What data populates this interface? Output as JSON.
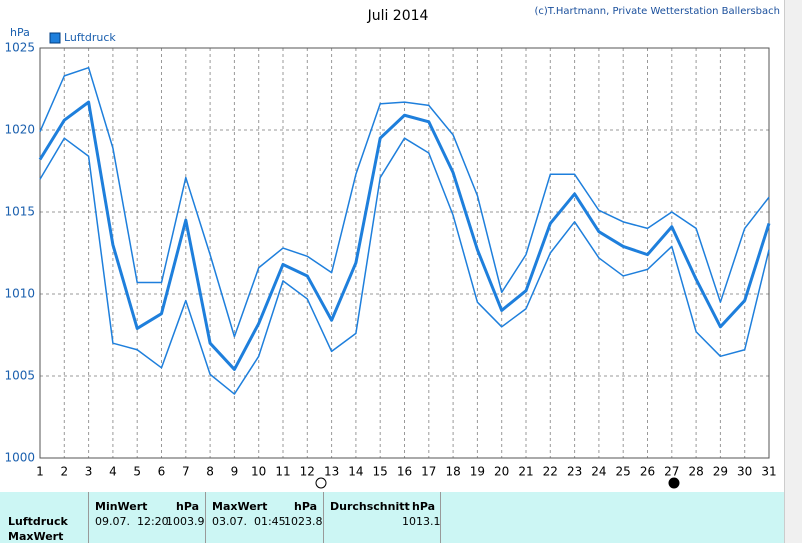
{
  "chart_data": {
    "type": "line",
    "title": "Juli 2014",
    "subtitle": "(c)T.Hartmann, Private Wetterstation Ballersbach",
    "y_label": "hPa",
    "x": [
      1,
      2,
      3,
      4,
      5,
      6,
      7,
      8,
      9,
      10,
      11,
      12,
      13,
      14,
      15,
      16,
      17,
      18,
      19,
      20,
      21,
      22,
      23,
      24,
      25,
      26,
      27,
      28,
      29,
      30,
      31
    ],
    "xlim": [
      1,
      31
    ],
    "xticks": [
      1,
      2,
      3,
      4,
      5,
      6,
      7,
      8,
      9,
      10,
      11,
      12,
      13,
      14,
      15,
      16,
      17,
      18,
      19,
      20,
      21,
      22,
      23,
      24,
      25,
      26,
      27,
      28,
      29,
      30,
      31
    ],
    "ylim": [
      1000,
      1025
    ],
    "yticks": [
      1000,
      1005,
      1010,
      1015,
      1020,
      1025
    ],
    "grid": true,
    "series": [
      {
        "name": "Luftdruck",
        "color": "#1e7fdc",
        "values": [
          1018.2,
          1020.6,
          1021.7,
          1013.0,
          1007.9,
          1008.8,
          1014.5,
          1007.0,
          1005.4,
          1008.2,
          1011.8,
          1011.1,
          1008.4,
          1011.9,
          1019.5,
          1020.9,
          1020.5,
          1017.4,
          1012.7,
          1009.0,
          1010.2,
          1014.3,
          1016.1,
          1013.8,
          1012.9,
          1012.4,
          1014.1,
          1010.9,
          1008.0,
          1009.6,
          1014.3
        ]
      },
      {
        "color": "#1e7fdc",
        "values": [
          1019.9,
          1023.3,
          1023.8,
          1018.9,
          1010.7,
          1010.7,
          1017.1,
          1012.4,
          1007.4,
          1011.6,
          1012.8,
          1012.3,
          1011.3,
          1017.3,
          1021.6,
          1021.7,
          1021.5,
          1019.7,
          1016.0,
          1010.1,
          1012.4,
          1017.3,
          1017.3,
          1015.1,
          1014.4,
          1014.0,
          1015.0,
          1014.0,
          1009.5,
          1014.0,
          1015.9
        ]
      },
      {
        "color": "#1e7fdc",
        "values": [
          1017.0,
          1019.5,
          1018.4,
          1007.0,
          1006.6,
          1005.5,
          1009.6,
          1005.1,
          1003.9,
          1006.2,
          1010.8,
          1009.7,
          1006.5,
          1007.6,
          1017.1,
          1019.5,
          1018.6,
          1014.8,
          1009.5,
          1008.0,
          1009.1,
          1012.5,
          1014.4,
          1012.2,
          1011.1,
          1011.5,
          1012.9,
          1007.7,
          1006.2,
          1006.6,
          1012.7
        ]
      }
    ]
  },
  "table": {
    "headers": [
      "MinWert",
      "hPa",
      "MaxWert",
      "hPa",
      "Durchschnitt",
      "hPa"
    ],
    "rows": [
      {
        "label": "Luftdruck",
        "min_time": "09.07.  12:20",
        "min_value": "1003.9",
        "max_time": "03.07.  01:45",
        "max_value": "1023.8",
        "average": "1013.1"
      },
      {
        "label": "MaxWert"
      }
    ]
  }
}
